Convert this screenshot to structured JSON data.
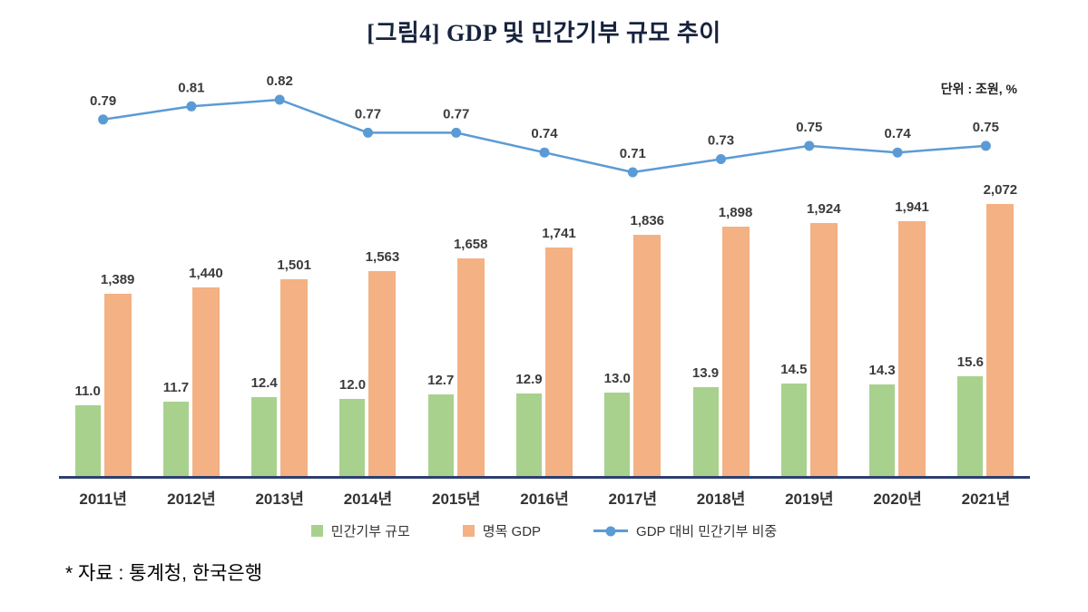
{
  "title": "[그림4] GDP 및 민간기부 규모 추이",
  "unit_note": "단위 : 조원, %",
  "source_note": "* 자료 : 통계청, 한국은행",
  "colors": {
    "donation_bar": "#a9d18e",
    "gdp_bar": "#f4b183",
    "ratio_line": "#5b9bd5",
    "axis": "#2e3f6e",
    "value_label": "#3b3b3b"
  },
  "chart_data": {
    "type": "combo",
    "title": "[그림4] GDP 및 민간기부 규모 추이",
    "unit": "조원, %",
    "categories": [
      "2011년",
      "2012년",
      "2013년",
      "2014년",
      "2015년",
      "2016년",
      "2017년",
      "2018년",
      "2019년",
      "2020년",
      "2021년"
    ],
    "series": [
      {
        "name": "민간기부 규모",
        "type": "bar",
        "values": [
          11.0,
          11.7,
          12.4,
          12.0,
          12.7,
          12.9,
          13.0,
          13.9,
          14.5,
          14.3,
          15.6
        ]
      },
      {
        "name": "명목 GDP",
        "type": "bar",
        "values": [
          1389,
          1440,
          1501,
          1563,
          1658,
          1741,
          1836,
          1898,
          1924,
          1941,
          2072
        ]
      },
      {
        "name": "GDP 대비 민간기부 비중",
        "type": "line",
        "values": [
          0.79,
          0.81,
          0.82,
          0.77,
          0.77,
          0.74,
          0.71,
          0.73,
          0.75,
          0.74,
          0.75
        ]
      }
    ],
    "legend_position": "bottom",
    "gridlines": false,
    "data_labels": true
  }
}
